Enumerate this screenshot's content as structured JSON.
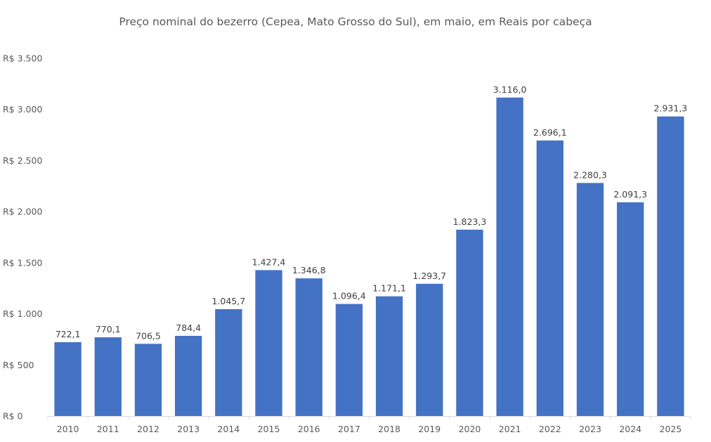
{
  "chart_data": {
    "type": "bar",
    "title": "Preço nominal do bezerro (Cepea, Mato Grosso do Sul), em maio, em Reais por cabeça",
    "categories": [
      "2010",
      "2011",
      "2012",
      "2013",
      "2014",
      "2015",
      "2016",
      "2017",
      "2018",
      "2019",
      "2020",
      "2021",
      "2022",
      "2023",
      "2024",
      "2025"
    ],
    "values": [
      722.1,
      770.1,
      706.5,
      784.4,
      1045.7,
      1427.4,
      1346.8,
      1096.4,
      1171.1,
      1293.7,
      1823.3,
      3116.0,
      2696.1,
      2280.3,
      2091.3,
      2931.3
    ],
    "value_labels": [
      "722,1",
      "770,1",
      "706,5",
      "784,4",
      "1.045,7",
      "1.427,4",
      "1.346,8",
      "1.096,4",
      "1.171,1",
      "1.293,7",
      "1.823,3",
      "3.116,0",
      "2.696,1",
      "2.280,3",
      "2.091,3",
      "2.931,3"
    ],
    "ylim": [
      0,
      3500
    ],
    "yticks": [
      0,
      500,
      1000,
      1500,
      2000,
      2500,
      3000,
      3500
    ],
    "ytick_labels": [
      "R$ 0",
      "R$ 500",
      "R$ 1.000",
      "R$ 1.500",
      "R$ 2.000",
      "R$ 2.500",
      "R$ 3.000",
      "R$ 3.500"
    ],
    "xlabel": "",
    "ylabel": "",
    "grid": false,
    "legend": "none",
    "bar_color": "#4472C4"
  }
}
